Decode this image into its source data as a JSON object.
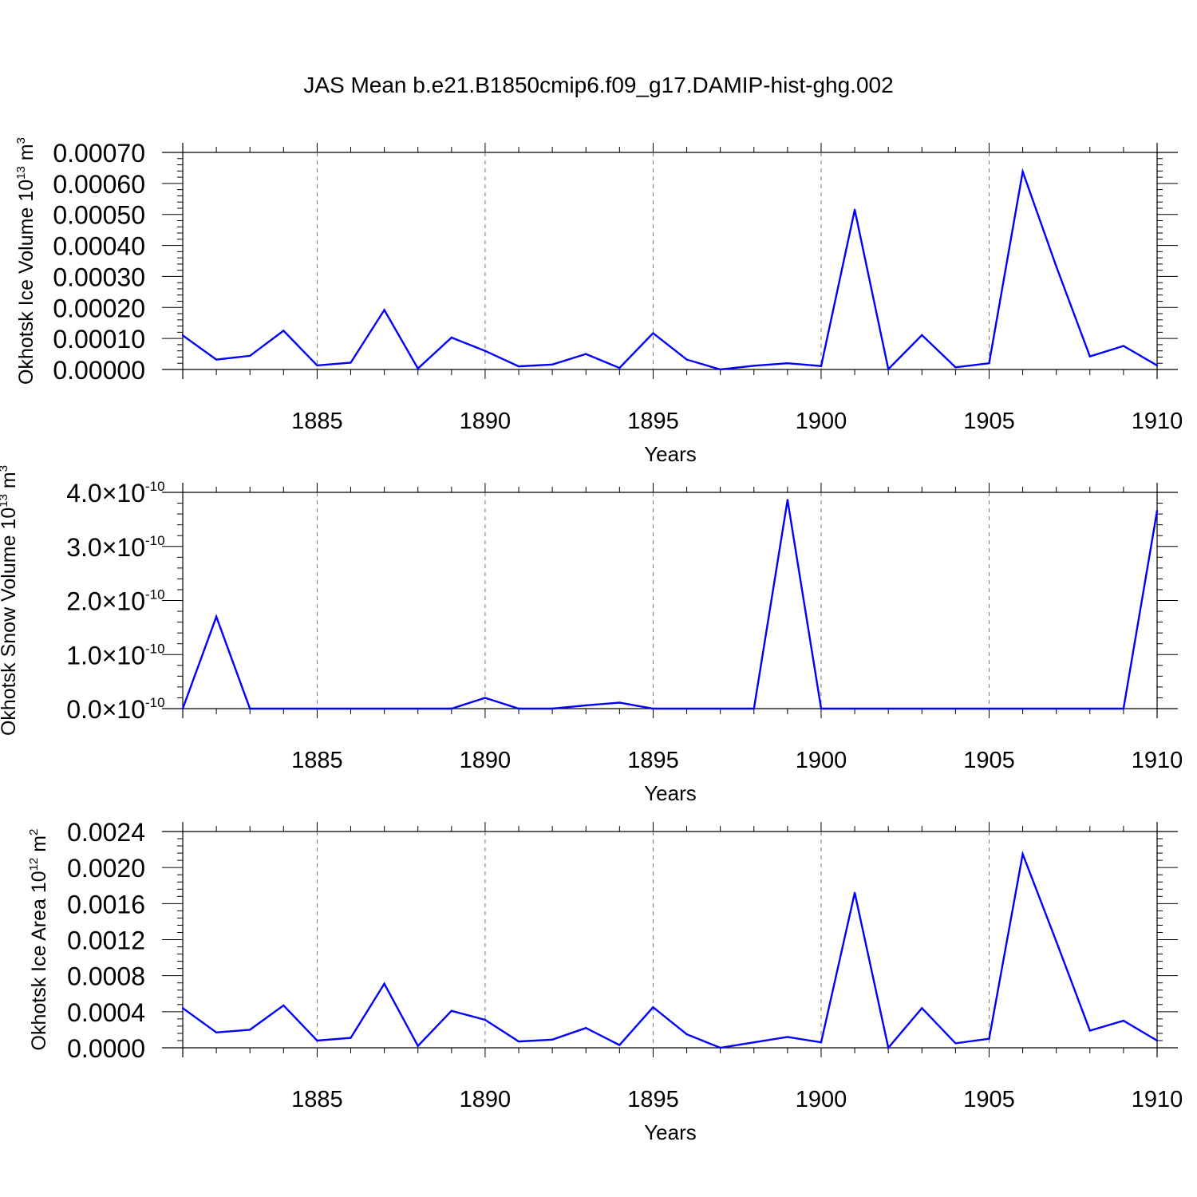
{
  "figure_title": "JAS Mean b.e21.B1850cmip6.f09_g17.DAMIP-hist-ghg.002",
  "line_color": "#0000ff",
  "chart_data": [
    {
      "type": "line",
      "title": "JAS Mean b.e21.B1850cmip6.f09_g17.DAMIP-hist-ghg.002",
      "ylabel": "Okhotsk Ice Volume 10",
      "ylabel_exp": "13",
      "ylabel_unit": " m",
      "ylabel_unit_exp": "3",
      "xlabel": "Years",
      "xlim": [
        1881,
        1910
      ],
      "ylim": [
        0,
        0.0007
      ],
      "x_ticks": [
        1885,
        1890,
        1895,
        1900,
        1905,
        1910
      ],
      "x_tick_labels": [
        "1885",
        "1890",
        "1895",
        "1900",
        "1905",
        "1910"
      ],
      "y_ticks": [
        0,
        0.0001,
        0.0002,
        0.0003,
        0.0004,
        0.0005,
        0.0006,
        0.0007
      ],
      "y_tick_labels": [
        "0.00000",
        "0.00010",
        "0.00020",
        "0.00030",
        "0.00040",
        "0.00050",
        "0.00060",
        "0.00070"
      ],
      "x": [
        1881,
        1882,
        1883,
        1884,
        1885,
        1886,
        1887,
        1888,
        1889,
        1890,
        1891,
        1892,
        1893,
        1894,
        1895,
        1896,
        1897,
        1898,
        1899,
        1900,
        1901,
        1902,
        1903,
        1904,
        1905,
        1906,
        1907,
        1908,
        1909,
        1910
      ],
      "values": [
        0.00011,
        3.2e-05,
        4.4e-05,
        0.000125,
        1.3e-05,
        2.2e-05,
        0.000192,
        3e-06,
        0.000103,
        6e-05,
        1e-05,
        1.6e-05,
        5e-05,
        5e-06,
        0.000117,
        3.2e-05,
        0.0,
        1.2e-05,
        2e-05,
        1.1e-05,
        0.000515,
        1e-06,
        0.000111,
        7e-06,
        2e-05,
        0.000638,
        0.000332,
        4.2e-05,
        7.6e-05,
        1.3e-05
      ]
    },
    {
      "type": "line",
      "ylabel": "Okhotsk Snow Volume 10",
      "ylabel_exp": "13",
      "ylabel_unit": " m",
      "ylabel_unit_exp": "3",
      "xlabel": "Years",
      "xlim": [
        1881,
        1910
      ],
      "ylim": [
        0,
        4e-10
      ],
      "x_ticks": [
        1885,
        1890,
        1895,
        1900,
        1905,
        1910
      ],
      "x_tick_labels": [
        "1885",
        "1890",
        "1895",
        "1900",
        "1905",
        "1910"
      ],
      "y_ticks": [
        0,
        1e-10,
        2e-10,
        3e-10,
        4e-10
      ],
      "y_tick_labels": [
        "0.0×10",
        "1.0×10",
        "2.0×10",
        "3.0×10",
        "4.0×10"
      ],
      "y_tick_exp": "-10",
      "x": [
        1881,
        1882,
        1883,
        1884,
        1885,
        1886,
        1887,
        1888,
        1889,
        1890,
        1891,
        1892,
        1893,
        1894,
        1895,
        1896,
        1897,
        1898,
        1899,
        1900,
        1901,
        1902,
        1903,
        1904,
        1905,
        1906,
        1907,
        1908,
        1909,
        1910
      ],
      "values": [
        0,
        1.7e-10,
        0,
        0,
        0,
        0,
        0,
        0,
        0,
        2e-11,
        0,
        0,
        6e-12,
        1.1e-11,
        0,
        0,
        0,
        0,
        3.86e-10,
        0,
        0,
        0,
        0,
        0,
        0,
        0,
        0,
        0,
        0,
        3.66e-10
      ]
    },
    {
      "type": "line",
      "ylabel": "Okhotsk Ice Area 10",
      "ylabel_exp": "12",
      "ylabel_unit": " m",
      "ylabel_unit_exp": "2",
      "xlabel": "Years",
      "xlim": [
        1881,
        1910
      ],
      "ylim": [
        0,
        0.0024
      ],
      "x_ticks": [
        1885,
        1890,
        1895,
        1900,
        1905,
        1910
      ],
      "x_tick_labels": [
        "1885",
        "1890",
        "1895",
        "1900",
        "1905",
        "1910"
      ],
      "y_ticks": [
        0,
        0.0004,
        0.0008,
        0.0012,
        0.0016,
        0.002,
        0.0024
      ],
      "y_tick_labels": [
        "0.0000",
        "0.0004",
        "0.0008",
        "0.0012",
        "0.0016",
        "0.0020",
        "0.0024"
      ],
      "x": [
        1881,
        1882,
        1883,
        1884,
        1885,
        1886,
        1887,
        1888,
        1889,
        1890,
        1891,
        1892,
        1893,
        1894,
        1895,
        1896,
        1897,
        1898,
        1899,
        1900,
        1901,
        1902,
        1903,
        1904,
        1905,
        1906,
        1907,
        1908,
        1909,
        1910
      ],
      "values": [
        0.00044,
        0.00017,
        0.0002,
        0.00047,
        8e-05,
        0.00011,
        0.00071,
        2e-05,
        0.00041,
        0.00031,
        7e-05,
        9e-05,
        0.00022,
        3e-05,
        0.00045,
        0.00015,
        0.0,
        6e-05,
        0.00012,
        6e-05,
        0.00172,
        0.0,
        0.00044,
        5e-05,
        0.0001,
        0.00215,
        0.00118,
        0.00019,
        0.0003,
        8e-05
      ]
    }
  ]
}
